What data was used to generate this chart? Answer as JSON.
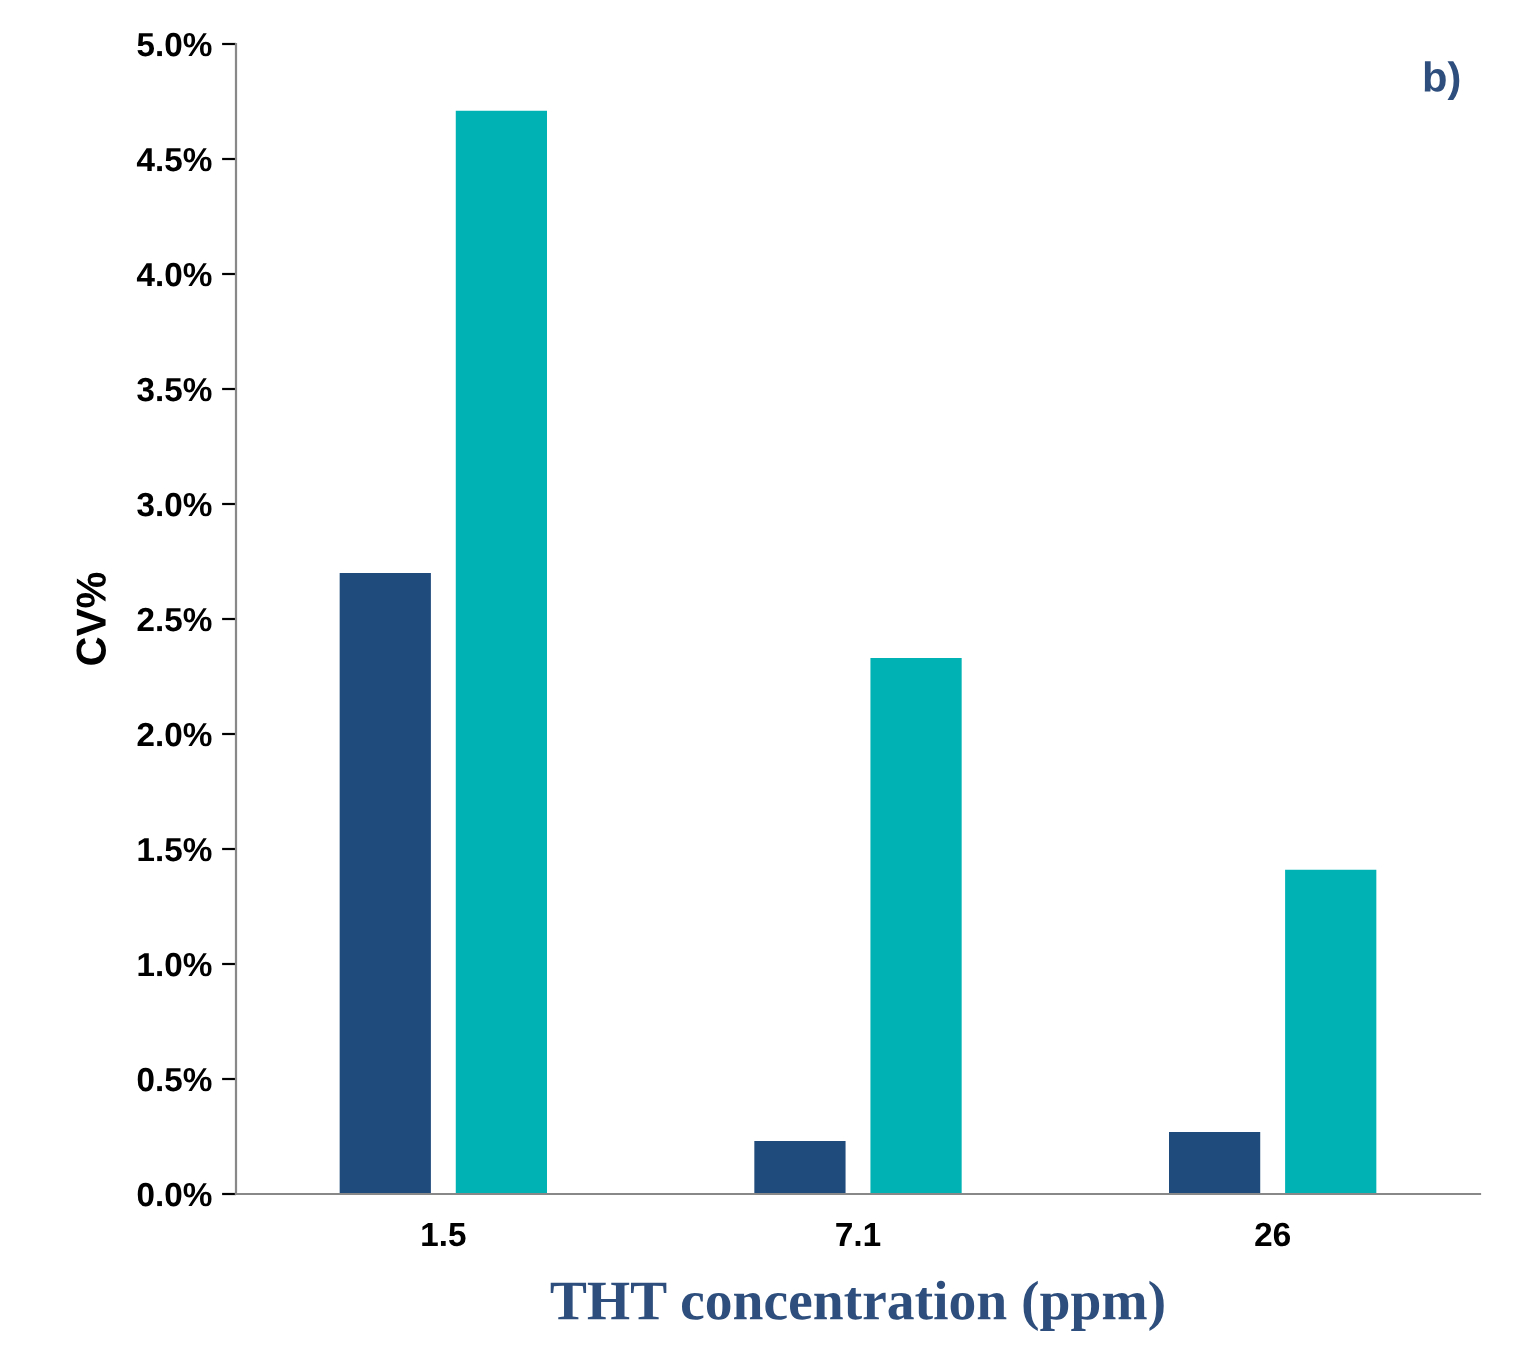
{
  "chart_data": {
    "type": "bar",
    "xlabel": "THT concentration (ppm)",
    "ylabel": "CV%",
    "annotations": [
      "b)"
    ],
    "categories": [
      "1.5",
      "7.1",
      "26"
    ],
    "series": [
      {
        "color": "#1f4a7c",
        "values": [
          2.7,
          0.23,
          0.27
        ]
      },
      {
        "color": "#00b2b4",
        "values": [
          4.71,
          2.33,
          1.41
        ]
      }
    ],
    "ylim": [
      0,
      5
    ],
    "yticks": [
      {
        "value": 0,
        "label": "0.0%"
      },
      {
        "value": 0.5,
        "label": "0.5%"
      },
      {
        "value": 1,
        "label": "1.0%"
      },
      {
        "value": 1.5,
        "label": "1.5%"
      },
      {
        "value": 2,
        "label": "2.0%"
      },
      {
        "value": 2.5,
        "label": "2.5%"
      },
      {
        "value": 3,
        "label": "3.0%"
      },
      {
        "value": 3.5,
        "label": "3.5%"
      },
      {
        "value": 4,
        "label": "4.0%"
      },
      {
        "value": 4.5,
        "label": "4.5%"
      },
      {
        "value": 5,
        "label": "5.0%"
      }
    ],
    "grid": false,
    "legend": false
  }
}
